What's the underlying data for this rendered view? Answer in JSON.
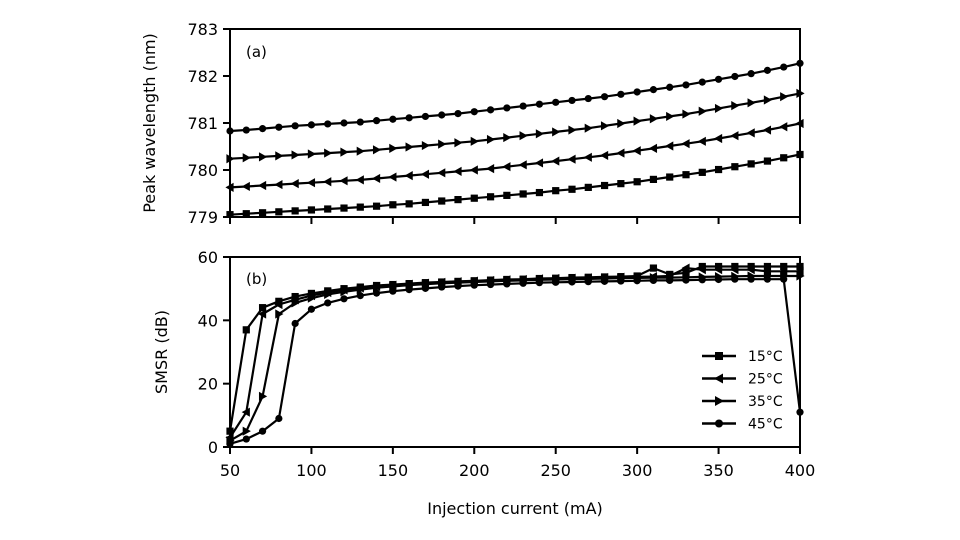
{
  "chart_data": [
    {
      "type": "line",
      "panel_label": "(a)",
      "title": "",
      "xlabel": "",
      "ylabel": "Peak wavelength (nm)",
      "xlim": [
        50,
        400
      ],
      "ylim": [
        779,
        783
      ],
      "yticks": [
        779,
        780,
        781,
        782,
        783
      ],
      "xticks": [
        50,
        100,
        150,
        200,
        250,
        300,
        350,
        400
      ],
      "grid": false,
      "x": [
        50,
        60,
        70,
        80,
        90,
        100,
        110,
        120,
        130,
        140,
        150,
        160,
        170,
        180,
        190,
        200,
        210,
        220,
        230,
        240,
        250,
        260,
        270,
        280,
        290,
        300,
        310,
        320,
        330,
        340,
        350,
        360,
        370,
        380,
        390,
        400
      ],
      "series": [
        {
          "name": "15°C",
          "marker": "square",
          "values": [
            779.05,
            779.07,
            779.09,
            779.11,
            779.13,
            779.15,
            779.17,
            779.19,
            779.21,
            779.23,
            779.26,
            779.28,
            779.31,
            779.34,
            779.37,
            779.4,
            779.43,
            779.46,
            779.49,
            779.52,
            779.56,
            779.59,
            779.63,
            779.67,
            779.71,
            779.75,
            779.8,
            779.85,
            779.9,
            779.95,
            780.01,
            780.07,
            780.13,
            780.19,
            780.26,
            780.33
          ]
        },
        {
          "name": "25°C",
          "marker": "triangle-left",
          "values": [
            779.63,
            779.65,
            779.67,
            779.69,
            779.71,
            779.73,
            779.75,
            779.77,
            779.79,
            779.82,
            779.85,
            779.88,
            779.91,
            779.94,
            779.97,
            780.0,
            780.03,
            780.07,
            780.11,
            780.15,
            780.19,
            780.23,
            780.27,
            780.31,
            780.36,
            780.41,
            780.46,
            780.51,
            780.56,
            780.61,
            780.67,
            780.73,
            780.79,
            780.85,
            780.92,
            780.99
          ]
        },
        {
          "name": "35°C",
          "marker": "triangle-right",
          "values": [
            780.24,
            780.26,
            780.28,
            780.3,
            780.32,
            780.34,
            780.36,
            780.38,
            780.4,
            780.43,
            780.46,
            780.49,
            780.52,
            780.55,
            780.58,
            780.61,
            780.65,
            780.69,
            780.73,
            780.77,
            780.81,
            780.85,
            780.89,
            780.94,
            780.99,
            781.04,
            781.09,
            781.14,
            781.19,
            781.25,
            781.31,
            781.37,
            781.43,
            781.49,
            781.56,
            781.63
          ]
        },
        {
          "name": "45°C",
          "marker": "circle",
          "values": [
            780.83,
            780.85,
            780.88,
            780.91,
            780.94,
            780.96,
            780.98,
            781.0,
            781.02,
            781.05,
            781.08,
            781.11,
            781.14,
            781.17,
            781.2,
            781.24,
            781.28,
            781.32,
            781.36,
            781.4,
            781.44,
            781.48,
            781.52,
            781.56,
            781.61,
            781.66,
            781.71,
            781.76,
            781.81,
            781.87,
            781.93,
            781.99,
            782.05,
            782.12,
            782.19,
            782.27
          ]
        }
      ]
    },
    {
      "type": "line",
      "panel_label": "(b)",
      "title": "",
      "xlabel": "Injection current (mA)",
      "ylabel": "SMSR (dB)",
      "xlim": [
        50,
        400
      ],
      "ylim": [
        0,
        60
      ],
      "yticks": [
        0,
        20,
        40,
        60
      ],
      "xticks": [
        50,
        100,
        150,
        200,
        250,
        300,
        350,
        400
      ],
      "grid": false,
      "legend": {
        "position": "lower right",
        "entries": [
          "15°C",
          "25°C",
          "35°C",
          "45°C"
        ]
      },
      "x": [
        50,
        60,
        70,
        80,
        90,
        100,
        110,
        120,
        130,
        140,
        150,
        160,
        170,
        180,
        190,
        200,
        210,
        220,
        230,
        240,
        250,
        260,
        270,
        280,
        290,
        300,
        310,
        320,
        330,
        340,
        350,
        360,
        370,
        380,
        390,
        400
      ],
      "series": [
        {
          "name": "15°C",
          "marker": "square",
          "values": [
            5,
            37,
            44,
            46,
            47.5,
            48.5,
            49.3,
            50,
            50.5,
            51,
            51.3,
            51.6,
            51.9,
            52.1,
            52.3,
            52.5,
            52.7,
            52.9,
            53,
            53.2,
            53.3,
            53.5,
            53.6,
            53.7,
            53.8,
            54,
            56.5,
            54.5,
            55,
            57,
            57,
            57,
            57,
            57,
            57,
            57
          ]
        },
        {
          "name": "25°C",
          "marker": "triangle-left",
          "values": [
            3,
            11,
            42,
            45,
            46.5,
            47.8,
            48.8,
            49.6,
            50.2,
            50.7,
            51.1,
            51.4,
            51.7,
            52,
            52.2,
            52.4,
            52.6,
            52.8,
            52.9,
            53.1,
            53.2,
            53.3,
            53.4,
            53.5,
            53.6,
            53.7,
            53.8,
            54,
            56.5,
            56,
            56,
            56,
            56,
            55.5,
            55.5,
            55.5
          ]
        },
        {
          "name": "35°C",
          "marker": "triangle-right",
          "values": [
            2,
            5,
            16,
            42,
            45.5,
            47,
            48.2,
            49,
            49.7,
            50.3,
            50.7,
            51.1,
            51.4,
            51.7,
            51.9,
            52.1,
            52.3,
            52.5,
            52.6,
            52.8,
            52.9,
            53,
            53.1,
            53.2,
            53.3,
            53.4,
            53.5,
            53.5,
            53.6,
            53.7,
            53.8,
            53.9,
            54,
            54,
            54,
            54
          ]
        },
        {
          "name": "45°C",
          "marker": "circle",
          "values": [
            1,
            2.5,
            5,
            9,
            39,
            43.5,
            45.5,
            46.8,
            47.8,
            48.6,
            49.2,
            49.7,
            50.1,
            50.5,
            50.8,
            51.1,
            51.3,
            51.5,
            51.7,
            51.9,
            52,
            52.1,
            52.2,
            52.3,
            52.4,
            52.5,
            52.6,
            52.6,
            52.7,
            52.8,
            52.9,
            53,
            53,
            53,
            53,
            11
          ]
        }
      ]
    }
  ]
}
